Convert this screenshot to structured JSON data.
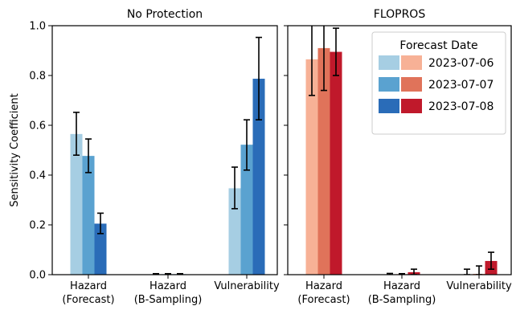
{
  "chart_data": {
    "type": "bar",
    "ylabel": "Sensitivity Coefficient",
    "ylim": [
      0,
      1.0
    ],
    "yticks": [
      "0.0",
      "0.2",
      "0.4",
      "0.6",
      "0.8",
      "1.0"
    ],
    "categories": [
      [
        "Hazard",
        "(Forecast)"
      ],
      [
        "Hazard",
        "(B-Sampling)"
      ],
      [
        "Vulnerability"
      ]
    ],
    "legend": {
      "title": "Forecast Date",
      "placement": "top-right",
      "entries": [
        "2023-07-06",
        "2023-07-07",
        "2023-07-08"
      ]
    },
    "panels": [
      {
        "title": "No Protection",
        "colors": [
          "#a6cee3",
          "#5aa2d0",
          "#2a6cb8"
        ],
        "series": [
          {
            "name": "2023-07-06",
            "values": [
              0.565,
              0.002,
              0.347
            ],
            "err_low": [
              0.48,
              0.0,
              0.265
            ],
            "err_high": [
              0.652,
              0.004,
              0.432
            ]
          },
          {
            "name": "2023-07-07",
            "values": [
              0.477,
              0.002,
              0.522
            ],
            "err_low": [
              0.41,
              0.0,
              0.42
            ],
            "err_high": [
              0.545,
              0.004,
              0.622
            ]
          },
          {
            "name": "2023-07-08",
            "values": [
              0.205,
              0.002,
              0.787
            ],
            "err_low": [
              0.165,
              0.0,
              0.622
            ],
            "err_high": [
              0.247,
              0.004,
              0.953
            ]
          }
        ]
      },
      {
        "title": "FLOPROS",
        "colors": [
          "#f7b196",
          "#e0735a",
          "#c0192b"
        ],
        "series": [
          {
            "name": "2023-07-06",
            "values": [
              0.865,
              0.001,
              0.0
            ],
            "err_low": [
              0.72,
              0.0,
              0.0
            ],
            "err_high": [
              1.01,
              0.005,
              0.022
            ]
          },
          {
            "name": "2023-07-07",
            "values": [
              0.91,
              0.002,
              0.003
            ],
            "err_low": [
              0.74,
              0.0,
              0.0
            ],
            "err_high": [
              1.08,
              0.004,
              0.035
            ]
          },
          {
            "name": "2023-07-08",
            "values": [
              0.895,
              0.01,
              0.055
            ],
            "err_low": [
              0.8,
              0.0,
              0.022
            ],
            "err_high": [
              0.99,
              0.022,
              0.09
            ]
          }
        ]
      }
    ]
  }
}
